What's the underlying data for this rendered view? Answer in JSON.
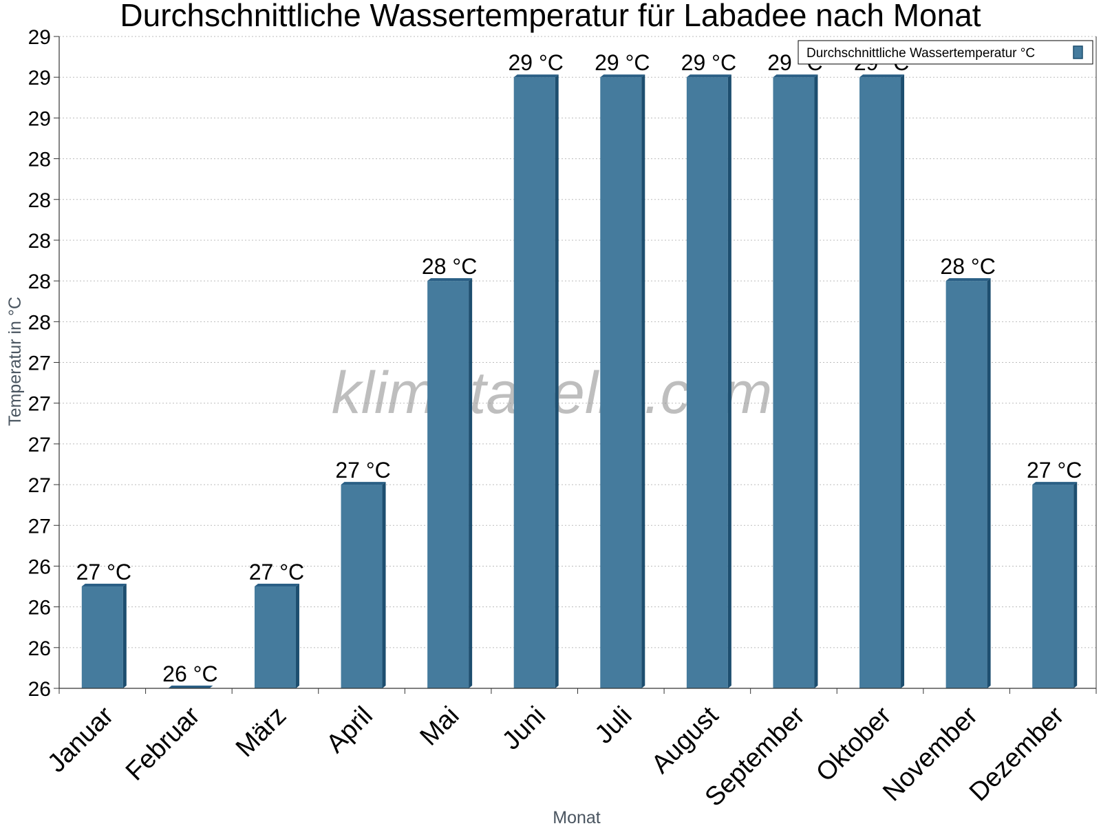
{
  "chart_data": {
    "type": "bar",
    "title": "Durchschnittliche Wassertemperatur für Labadee nach Monat",
    "xlabel": "Monat",
    "ylabel": "Temperatur in °C",
    "categories": [
      "Januar",
      "Februar",
      "März",
      "April",
      "Mai",
      "Juni",
      "Juli",
      "August",
      "September",
      "Oktober",
      "November",
      "Dezember"
    ],
    "series": [
      {
        "name": "Durchschnittliche Wassertemperatur °C",
        "values": [
          26.5,
          26.0,
          26.5,
          27.0,
          28.0,
          29.0,
          29.0,
          29.0,
          29.0,
          29.0,
          28.0,
          27.0
        ],
        "labels": [
          "27 °C",
          "26 °C",
          "27 °C",
          "27 °C",
          "28 °C",
          "29 °C",
          "29 °C",
          "29 °C",
          "29 °C",
          "29 °C",
          "28 °C",
          "27 °C"
        ]
      }
    ],
    "ylim": [
      26.0,
      29.2
    ],
    "yticks": [
      26.0,
      26.2,
      26.4,
      26.6,
      26.8,
      27.0,
      27.2,
      27.4,
      27.6,
      27.8,
      28.0,
      28.2,
      28.4,
      28.6,
      28.8,
      29.0,
      29.2
    ],
    "ytick_labels": [
      "26",
      "26",
      "26",
      "26",
      "27",
      "27",
      "27",
      "27",
      "27",
      "28",
      "28",
      "28",
      "28",
      "28",
      "29",
      "29",
      "29"
    ],
    "grid": true,
    "legend_position": "top-right",
    "colors": {
      "bar_face": "#457b9d",
      "bar_side": "#1d4e6f",
      "bar_top": "#2a5f85",
      "grid": "#bbbbbb",
      "axis": "#333333"
    }
  },
  "watermark": "klimatabelle.com"
}
